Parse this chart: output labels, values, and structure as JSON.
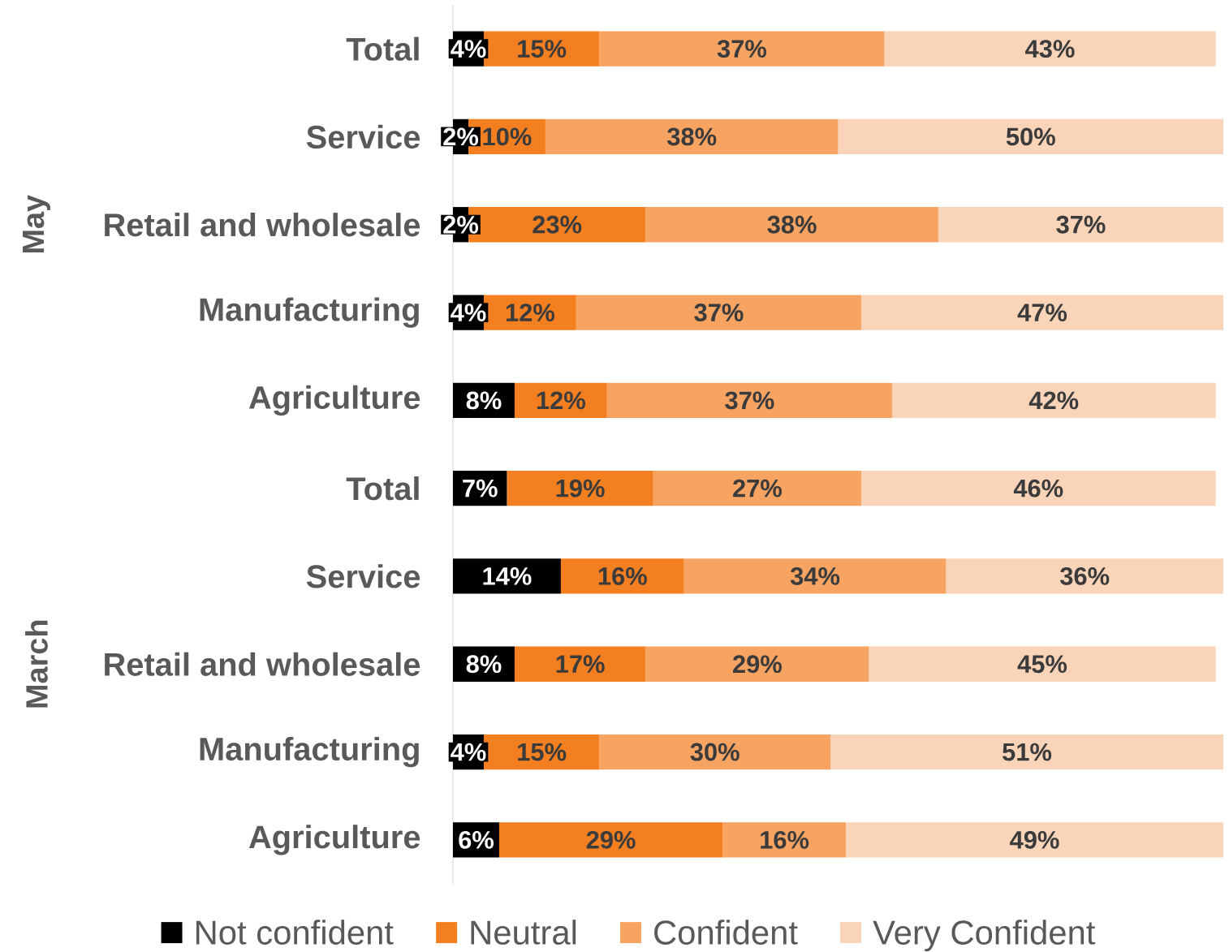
{
  "chart_data": [
    {
      "type": "bar",
      "orientation": "horizontal",
      "stacked": true,
      "ylabel": "May",
      "categories": [
        "Total",
        "Service",
        "Retail and wholesale",
        "Manufacturing",
        "Agriculture"
      ],
      "series": [
        {
          "color": "#000000",
          "values": [
            4,
            2,
            2,
            4,
            8
          ],
          "value_labels": [
            "4%",
            "2%",
            "2%",
            "4%",
            "8%"
          ]
        },
        {
          "color": "#f47f20",
          "values": [
            15,
            10,
            23,
            12,
            12
          ],
          "value_labels": [
            "15%",
            "10%",
            "23%",
            "12%",
            "12%"
          ]
        },
        {
          "color": "#f7a463",
          "values": [
            37,
            38,
            38,
            37,
            37
          ],
          "value_labels": [
            "37%",
            "38%",
            "38%",
            "37%",
            "37%"
          ]
        },
        {
          "color": "#fad4b8",
          "values": [
            43,
            50,
            37,
            47,
            42
          ],
          "value_labels": [
            "43%",
            "50%",
            "37%",
            "47%",
            "42%"
          ]
        }
      ]
    },
    {
      "type": "bar",
      "orientation": "horizontal",
      "stacked": true,
      "ylabel": "March",
      "legend": "bottom",
      "categories": [
        "Total",
        "Service",
        "Retail and wholesale",
        "Manufacturing",
        "Agriculture"
      ],
      "series": [
        {
          "name": "Not confident",
          "color": "#000000",
          "values": [
            7,
            14,
            8,
            4,
            6
          ],
          "value_labels": [
            "7%",
            "14%",
            "8%",
            "4%",
            "6%"
          ]
        },
        {
          "name": "Neutral",
          "color": "#f47f20",
          "values": [
            19,
            16,
            17,
            15,
            29
          ],
          "value_labels": [
            "19%",
            "16%",
            "17%",
            "15%",
            "29%"
          ]
        },
        {
          "name": "Confident",
          "color": "#f7a463",
          "values": [
            27,
            34,
            29,
            30,
            16
          ],
          "value_labels": [
            "27%",
            "34%",
            "29%",
            "30%",
            "16%"
          ]
        },
        {
          "name": "Very Confident",
          "color": "#fad4b8",
          "values": [
            46,
            36,
            45,
            51,
            49
          ],
          "value_labels": [
            "46%",
            "36%",
            "45%",
            "51%",
            "49%"
          ]
        }
      ]
    }
  ]
}
